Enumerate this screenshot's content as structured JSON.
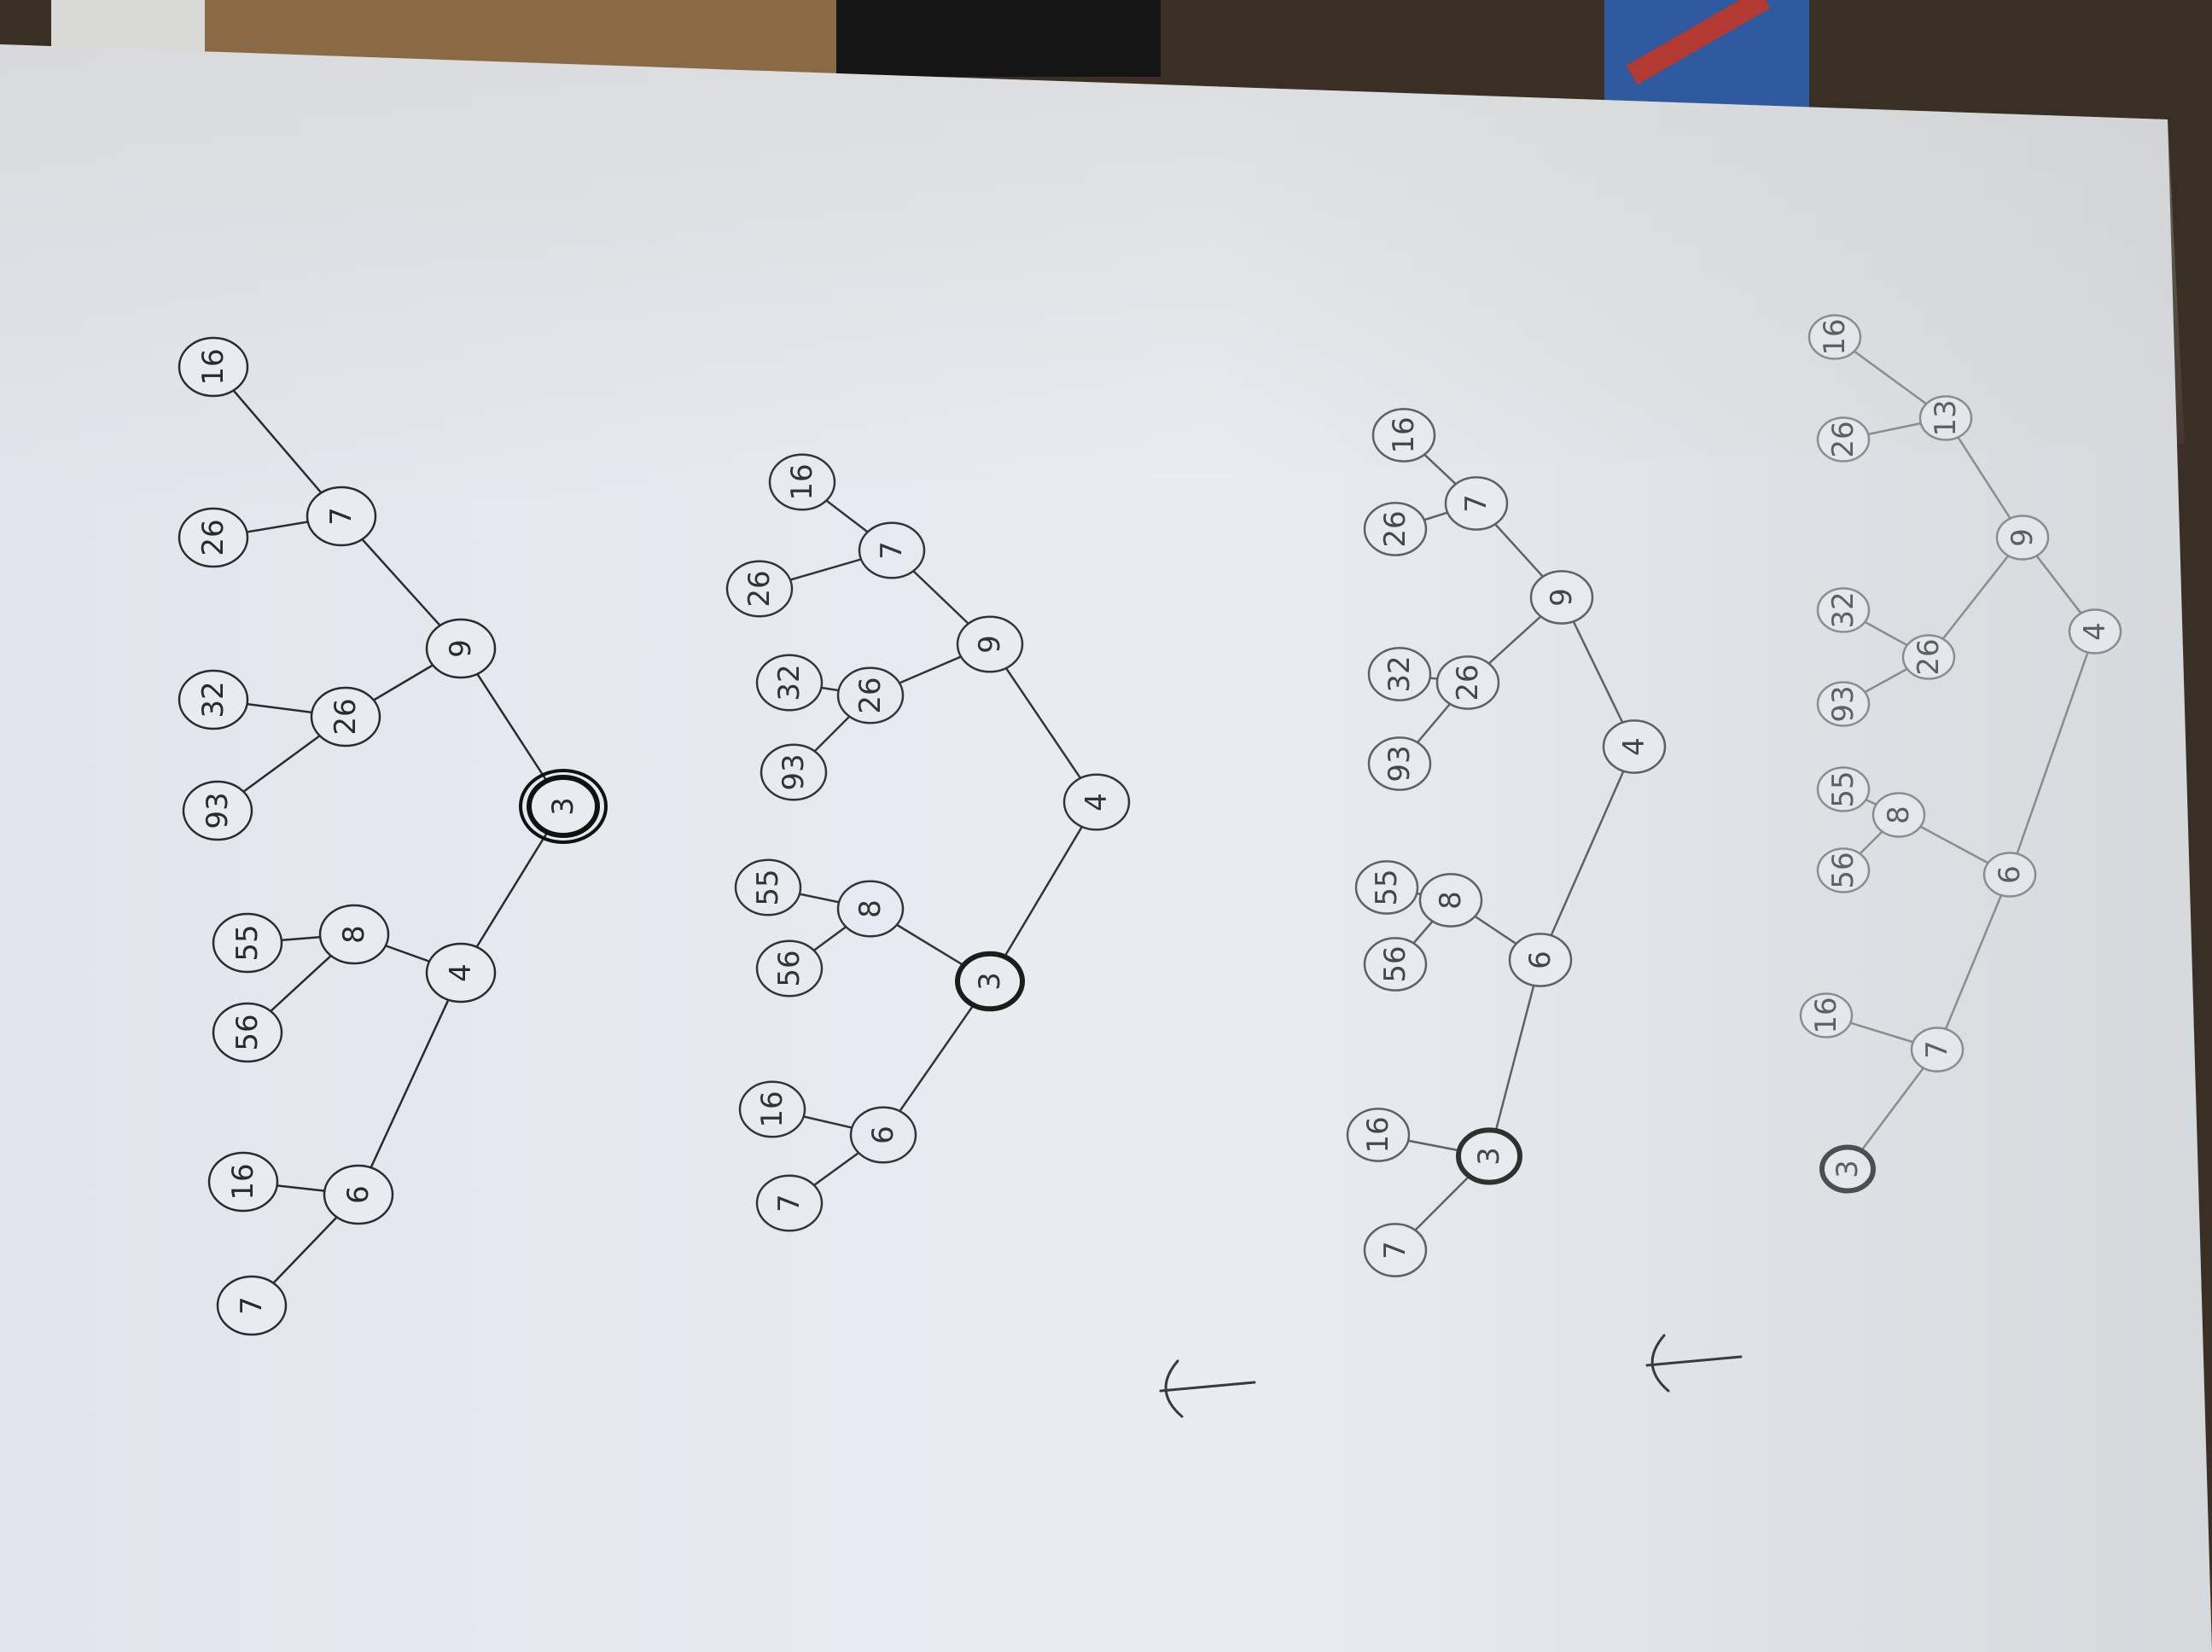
{
  "photo": {
    "subject": "hand-drawn binary trees on paper",
    "ink_color": "#2b2b2b",
    "paper_color": "#eceff3",
    "table_color": "#3a2f25"
  },
  "trees": [
    {
      "name": "tree-1",
      "highlighted": "3",
      "nodes": [
        {
          "id": "a",
          "label": "16"
        },
        {
          "id": "b",
          "label": "7"
        },
        {
          "id": "c",
          "label": "26"
        },
        {
          "id": "d",
          "label": "9"
        },
        {
          "id": "e",
          "label": "32"
        },
        {
          "id": "f",
          "label": "26"
        },
        {
          "id": "g",
          "label": "93"
        },
        {
          "id": "h",
          "label": "3"
        },
        {
          "id": "i",
          "label": "55"
        },
        {
          "id": "j",
          "label": "8"
        },
        {
          "id": "k",
          "label": "56"
        },
        {
          "id": "l",
          "label": "4"
        },
        {
          "id": "m",
          "label": "16"
        },
        {
          "id": "n",
          "label": "6"
        },
        {
          "id": "o",
          "label": "7"
        }
      ]
    },
    {
      "name": "tree-2",
      "highlighted": "3",
      "nodes": [
        {
          "id": "a",
          "label": "16"
        },
        {
          "id": "b",
          "label": "7"
        },
        {
          "id": "c",
          "label": "26"
        },
        {
          "id": "d",
          "label": "9"
        },
        {
          "id": "e",
          "label": "32"
        },
        {
          "id": "f",
          "label": "26"
        },
        {
          "id": "g",
          "label": "93"
        },
        {
          "id": "h",
          "label": "4"
        },
        {
          "id": "i",
          "label": "55"
        },
        {
          "id": "j",
          "label": "8"
        },
        {
          "id": "k",
          "label": "56"
        },
        {
          "id": "l",
          "label": "3"
        },
        {
          "id": "m",
          "label": "16"
        },
        {
          "id": "n",
          "label": "6"
        },
        {
          "id": "o",
          "label": "7"
        }
      ]
    },
    {
      "name": "tree-3",
      "highlighted": "3",
      "nodes": [
        {
          "id": "a",
          "label": "16"
        },
        {
          "id": "b",
          "label": "7"
        },
        {
          "id": "c",
          "label": "26"
        },
        {
          "id": "d",
          "label": "9"
        },
        {
          "id": "e",
          "label": "32"
        },
        {
          "id": "f",
          "label": "26"
        },
        {
          "id": "g",
          "label": "93"
        },
        {
          "id": "h",
          "label": "4"
        },
        {
          "id": "i",
          "label": "55"
        },
        {
          "id": "j",
          "label": "8"
        },
        {
          "id": "k",
          "label": "56"
        },
        {
          "id": "l",
          "label": "6"
        },
        {
          "id": "m",
          "label": "16"
        },
        {
          "id": "n",
          "label": "3"
        },
        {
          "id": "o",
          "label": "7"
        }
      ]
    },
    {
      "name": "tree-4",
      "highlighted": "3",
      "nodes": [
        {
          "id": "a",
          "label": "16"
        },
        {
          "id": "b",
          "label": "13"
        },
        {
          "id": "c",
          "label": "26"
        },
        {
          "id": "d",
          "label": "9"
        },
        {
          "id": "e",
          "label": "32"
        },
        {
          "id": "f",
          "label": "26"
        },
        {
          "id": "g",
          "label": "93"
        },
        {
          "id": "h",
          "label": "4"
        },
        {
          "id": "i",
          "label": "55"
        },
        {
          "id": "j",
          "label": "8"
        },
        {
          "id": "k",
          "label": "56"
        },
        {
          "id": "l",
          "label": "6"
        },
        {
          "id": "m",
          "label": "16"
        },
        {
          "id": "n",
          "label": "7"
        },
        {
          "id": "o",
          "label": "3"
        }
      ]
    }
  ],
  "arrows": [
    "arrow-1",
    "arrow-2"
  ]
}
